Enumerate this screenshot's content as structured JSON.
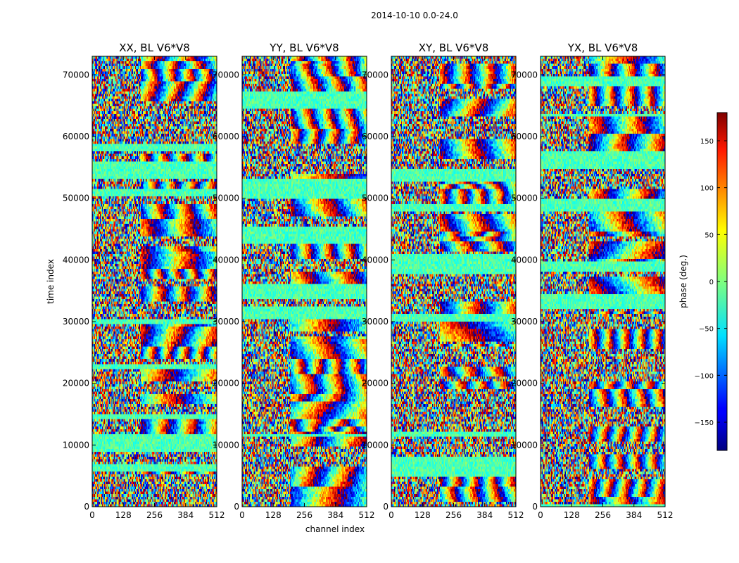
{
  "chart_data": {
    "type": "heatmap",
    "suptitle": "2014-10-10 0.0-24.0",
    "xlabel": "channel index",
    "ylabel": "time index",
    "xlim": [
      0,
      512
    ],
    "ylim": [
      0,
      73000
    ],
    "x_ticks": [
      0,
      128,
      256,
      384,
      512
    ],
    "y_ticks": [
      0,
      10000,
      20000,
      30000,
      40000,
      50000,
      60000,
      70000
    ],
    "colormap": "jet",
    "colorbar": {
      "label": "phase (deg.)",
      "range": [
        -180,
        180
      ],
      "ticks": [
        150,
        100,
        50,
        0,
        -50,
        -100,
        -150
      ],
      "tick_labels": [
        "150",
        "100",
        "50",
        "0",
        "−50",
        "−100",
        "−150"
      ],
      "placement": "right"
    },
    "panels": [
      {
        "title": "XX, BL V6*V8",
        "seed": 11
      },
      {
        "title": "YY, BL V6*V8",
        "seed": 23
      },
      {
        "title": "XY, BL V6*V8",
        "seed": 37
      },
      {
        "title": "YX, BL V6*V8",
        "seed": 53
      }
    ]
  }
}
